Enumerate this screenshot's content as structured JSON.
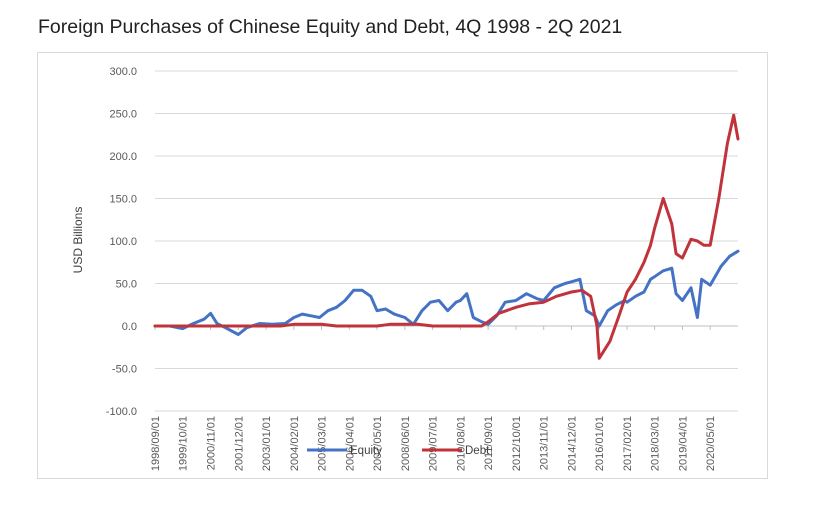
{
  "chart_data": {
    "type": "line",
    "title": "Foreign Purchases of Chinese Equity and Debt, 4Q 1998 - 2Q 2021",
    "ylabel": "USD Billions",
    "xlabel": "",
    "ylim": [
      -100,
      300
    ],
    "yticks": [
      "300.0",
      "250.0",
      "200.0",
      "150.0",
      "100.0",
      "50.0",
      "0.0",
      "-50.0",
      "-100.0"
    ],
    "ytick_values": [
      300,
      250,
      200,
      150,
      100,
      50,
      0,
      -50,
      -100
    ],
    "xtick_labels": [
      "1998/09/01",
      "1999/10/01",
      "2000/11/01",
      "2001/12/01",
      "2003/01/01",
      "2004/02/01",
      "2005/03/01",
      "2006/04/01",
      "2007/05/01",
      "2008/06/01",
      "2009/07/01",
      "2010/08/01",
      "2011/09/01",
      "2012/10/01",
      "2013/11/01",
      "2014/12/01",
      "2016/01/01",
      "2017/02/01",
      "2018/03/01",
      "2019/04/01",
      "2020/05/01"
    ],
    "x_start": "1998-09-01",
    "x_end": "2021-06-01",
    "grid": true,
    "legend_position": "bottom",
    "series": [
      {
        "name": "Equity",
        "color": "#4472c4",
        "x": [
          "1998-09-01",
          "1999-04-01",
          "1999-10-01",
          "2000-03-01",
          "2000-08-01",
          "2000-11-01",
          "2001-02-01",
          "2001-06-01",
          "2001-12-01",
          "2002-04-01",
          "2002-10-01",
          "2003-04-01",
          "2003-10-01",
          "2004-02-01",
          "2004-06-01",
          "2004-10-01",
          "2005-02-01",
          "2005-06-01",
          "2005-10-01",
          "2006-02-01",
          "2006-06-01",
          "2006-10-01",
          "2007-02-01",
          "2007-05-01",
          "2007-09-01",
          "2008-01-01",
          "2008-06-01",
          "2008-10-01",
          "2009-02-01",
          "2009-06-01",
          "2009-10-01",
          "2010-02-01",
          "2010-06-01",
          "2010-08-01",
          "2010-11-01",
          "2011-02-01",
          "2011-06-01",
          "2011-09-01",
          "2012-01-01",
          "2012-05-01",
          "2012-10-01",
          "2013-03-01",
          "2013-08-01",
          "2013-11-01",
          "2014-04-01",
          "2014-09-01",
          "2014-12-01",
          "2015-04-01",
          "2015-07-01",
          "2015-11-01",
          "2016-01-01",
          "2016-05-01",
          "2016-09-01",
          "2017-01-01",
          "2017-02-01",
          "2017-06-01",
          "2017-10-01",
          "2018-01-01",
          "2018-03-01",
          "2018-07-01",
          "2018-11-01",
          "2019-01-01",
          "2019-04-01",
          "2019-08-01",
          "2019-11-01",
          "2020-01-01",
          "2020-05-01",
          "2020-10-01",
          "2021-02-01",
          "2021-06-01"
        ],
        "values": [
          0,
          0,
          -3,
          3,
          8,
          15,
          3,
          -2,
          -10,
          -2,
          3,
          2,
          3,
          10,
          14,
          12,
          10,
          18,
          22,
          30,
          42,
          42,
          35,
          18,
          20,
          14,
          10,
          2,
          18,
          28,
          30,
          18,
          28,
          30,
          38,
          10,
          5,
          2,
          12,
          28,
          30,
          38,
          32,
          30,
          45,
          50,
          52,
          55,
          18,
          12,
          0,
          18,
          25,
          30,
          28,
          35,
          40,
          55,
          58,
          65,
          68,
          38,
          30,
          45,
          10,
          55,
          48,
          70,
          82,
          88
        ]
      },
      {
        "name": "Debt",
        "color": "#c0333b",
        "x": [
          "1998-09-01",
          "1999-06-01",
          "2000-03-01",
          "2000-11-01",
          "2001-06-01",
          "2001-12-01",
          "2002-06-01",
          "2003-01-01",
          "2003-08-01",
          "2004-02-01",
          "2004-08-01",
          "2005-03-01",
          "2005-10-01",
          "2006-04-01",
          "2006-10-01",
          "2007-05-01",
          "2007-11-01",
          "2008-06-01",
          "2008-12-01",
          "2009-07-01",
          "2010-02-01",
          "2010-08-01",
          "2011-02-01",
          "2011-06-01",
          "2011-09-01",
          "2012-02-01",
          "2012-10-01",
          "2013-04-01",
          "2013-11-01",
          "2014-05-01",
          "2014-12-01",
          "2015-05-01",
          "2015-09-01",
          "2015-12-01",
          "2016-01-01",
          "2016-06-01",
          "2016-10-01",
          "2017-02-01",
          "2017-06-01",
          "2017-10-01",
          "2018-01-01",
          "2018-03-01",
          "2018-07-01",
          "2018-11-01",
          "2019-01-01",
          "2019-04-01",
          "2019-08-01",
          "2019-11-01",
          "2020-02-01",
          "2020-05-01",
          "2020-09-01",
          "2021-01-01",
          "2021-04-01",
          "2021-06-01"
        ],
        "values": [
          0,
          0,
          0,
          0,
          0,
          0,
          0,
          0,
          0,
          2,
          2,
          2,
          0,
          0,
          0,
          0,
          2,
          2,
          2,
          0,
          0,
          0,
          0,
          0,
          5,
          15,
          22,
          26,
          28,
          35,
          40,
          42,
          35,
          0,
          -38,
          -18,
          10,
          40,
          55,
          75,
          95,
          115,
          150,
          120,
          85,
          80,
          102,
          100,
          95,
          95,
          150,
          215,
          248,
          220
        ]
      }
    ]
  }
}
